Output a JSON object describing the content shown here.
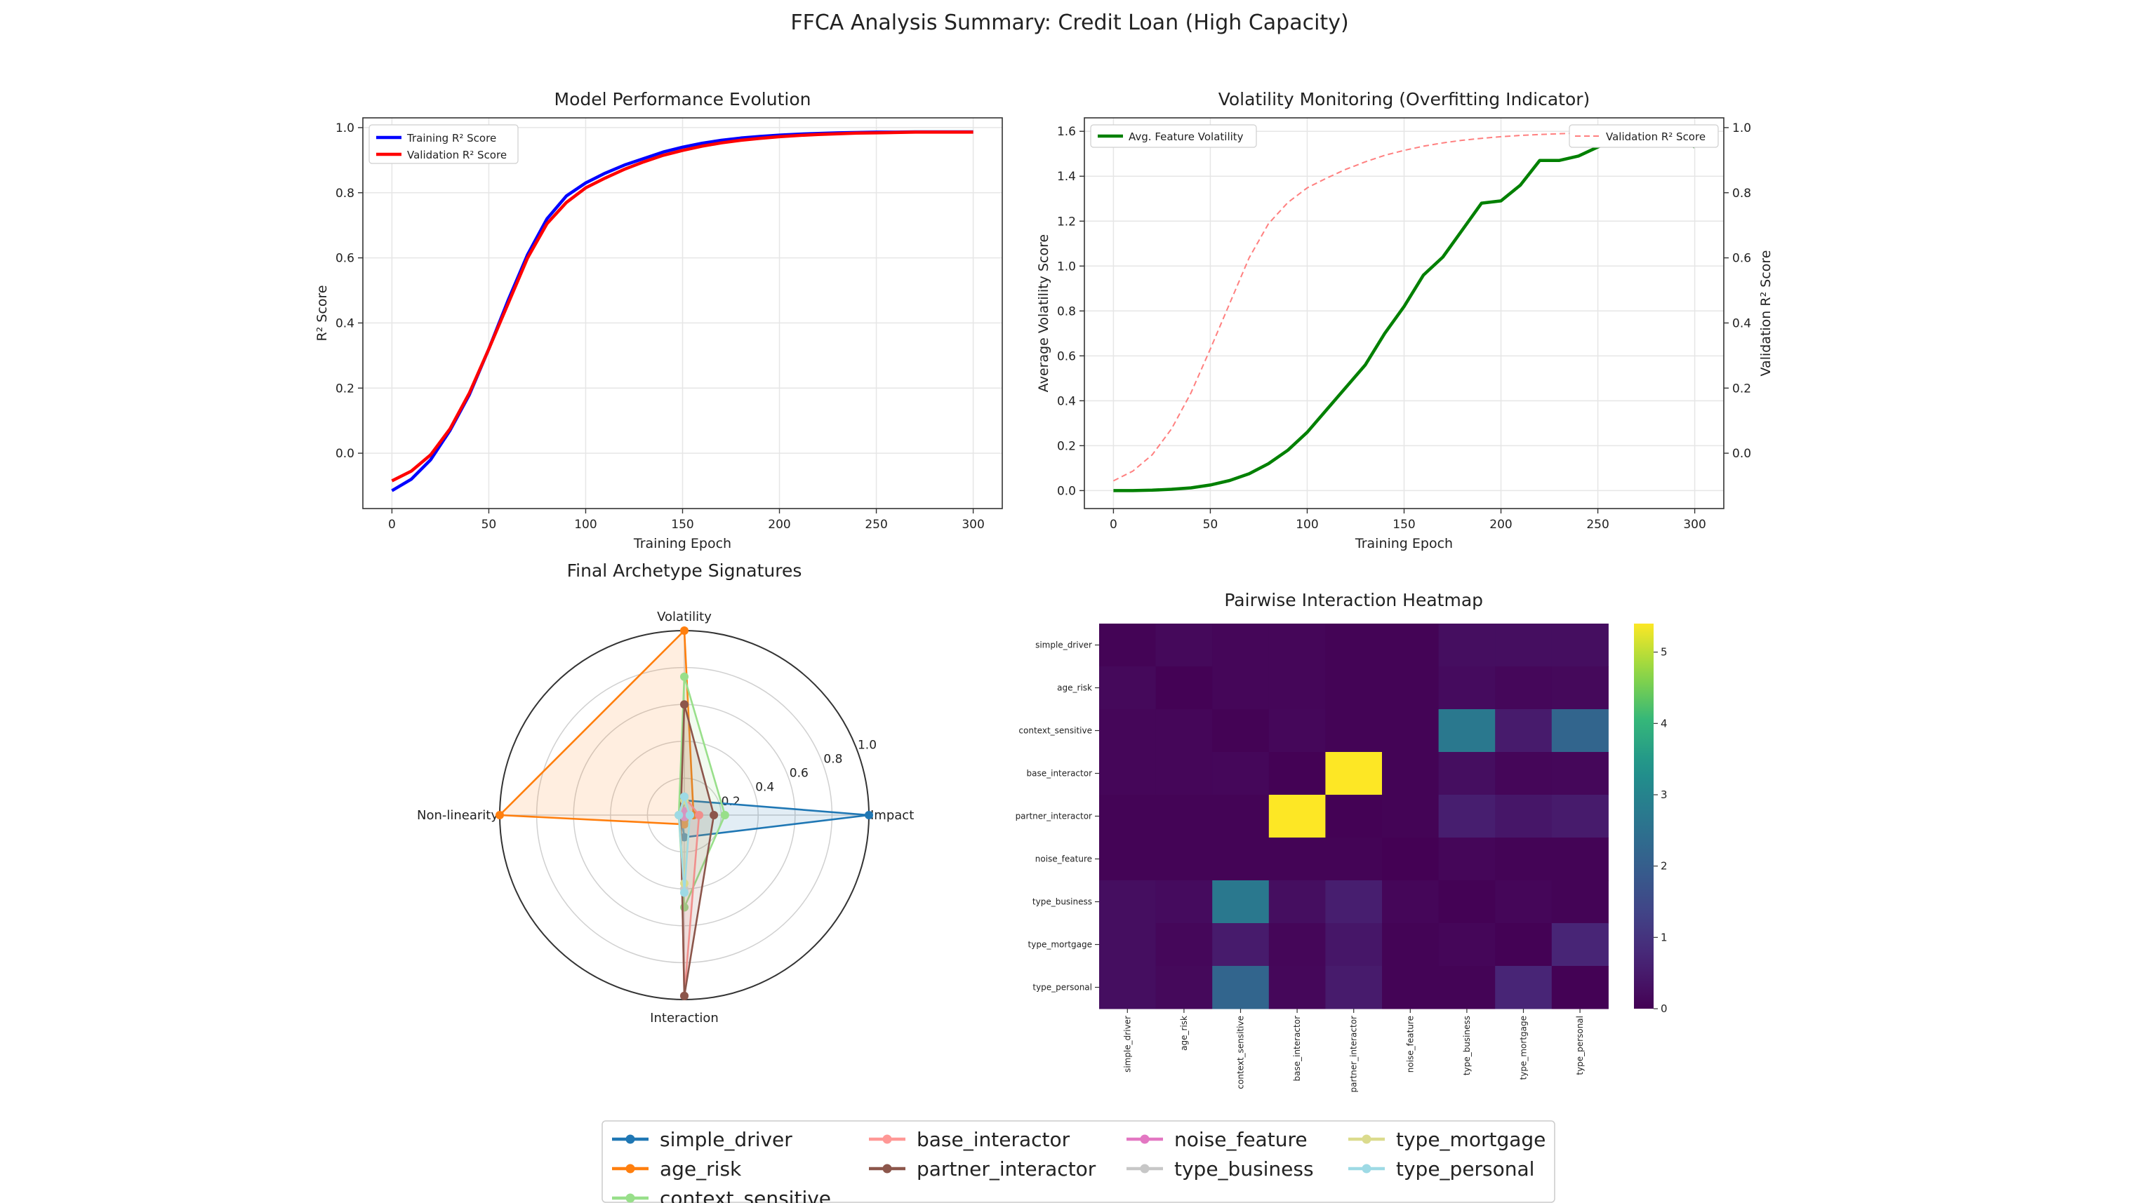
{
  "figure": {
    "title": "FFCA Analysis Summary: Credit Loan (High Capacity)"
  },
  "colors": {
    "training": "#0000ff",
    "validation": "#ff0000",
    "volatility": "#008000",
    "val_dashed": "#ff8080",
    "grid": "#e6e6e6",
    "axis": "#333333"
  },
  "chart_data": [
    {
      "id": "performance",
      "type": "line",
      "title": "Model Performance Evolution",
      "xlabel": "Training Epoch",
      "ylabel": "R² Score",
      "xlim": [
        -15,
        315
      ],
      "ylim": [
        -0.17,
        1.03
      ],
      "xticks": [
        0,
        50,
        100,
        150,
        200,
        250,
        300
      ],
      "yticks": [
        0.0,
        0.2,
        0.4,
        0.6,
        0.8,
        1.0
      ],
      "x": [
        0,
        10,
        20,
        30,
        40,
        50,
        60,
        70,
        80,
        90,
        100,
        110,
        120,
        130,
        140,
        150,
        160,
        170,
        180,
        190,
        200,
        210,
        220,
        230,
        240,
        250,
        260,
        270,
        280,
        290,
        300
      ],
      "series": [
        {
          "name": "Training R² Score",
          "color": "#0000ff",
          "values": [
            -0.115,
            -0.08,
            -0.02,
            0.07,
            0.18,
            0.32,
            0.47,
            0.61,
            0.72,
            0.79,
            0.83,
            0.86,
            0.885,
            0.905,
            0.925,
            0.94,
            0.952,
            0.961,
            0.968,
            0.973,
            0.977,
            0.98,
            0.982,
            0.984,
            0.985,
            0.986,
            0.986,
            0.987,
            0.987,
            0.987,
            0.987
          ]
        },
        {
          "name": "Validation R² Score",
          "color": "#ff0000",
          "values": [
            -0.085,
            -0.055,
            -0.005,
            0.075,
            0.185,
            0.32,
            0.46,
            0.6,
            0.705,
            0.77,
            0.815,
            0.845,
            0.872,
            0.895,
            0.915,
            0.93,
            0.943,
            0.953,
            0.961,
            0.967,
            0.972,
            0.976,
            0.979,
            0.981,
            0.983,
            0.984,
            0.985,
            0.986,
            0.986,
            0.986,
            0.986
          ]
        }
      ],
      "legend": "upper-left"
    },
    {
      "id": "volatility",
      "type": "line",
      "title": "Volatility Monitoring (Overfitting Indicator)",
      "xlabel": "Training Epoch",
      "ylabel": "Average Volatility Score",
      "ylabel_right": "Validation R² Score",
      "xlim": [
        -15,
        315
      ],
      "ylim": [
        -0.08,
        1.66
      ],
      "ylim_right": [
        -0.17,
        1.03
      ],
      "xticks": [
        0,
        50,
        100,
        150,
        200,
        250,
        300
      ],
      "yticks": [
        0.0,
        0.2,
        0.4,
        0.6,
        0.8,
        1.0,
        1.2,
        1.4,
        1.6
      ],
      "yticks_right": [
        0.0,
        0.2,
        0.4,
        0.6,
        0.8,
        1.0
      ],
      "x": [
        0,
        10,
        20,
        30,
        40,
        50,
        60,
        70,
        80,
        90,
        100,
        110,
        120,
        130,
        140,
        150,
        160,
        170,
        180,
        190,
        200,
        210,
        220,
        230,
        240,
        250,
        260,
        270,
        280,
        290,
        300
      ],
      "series": [
        {
          "name": "Avg. Feature Volatility",
          "color": "#008000",
          "axis": "left",
          "values": [
            0.0,
            0.0,
            0.002,
            0.006,
            0.012,
            0.025,
            0.045,
            0.075,
            0.12,
            0.18,
            0.26,
            0.36,
            0.46,
            0.56,
            0.7,
            0.82,
            0.96,
            1.04,
            1.16,
            1.28,
            1.29,
            1.36,
            1.47,
            1.47,
            1.49,
            1.53,
            1.57,
            1.6,
            1.6,
            1.59,
            1.53
          ]
        },
        {
          "name": "Validation R² Score",
          "color": "#ff8080",
          "axis": "right",
          "dashed": true,
          "values": [
            -0.085,
            -0.055,
            -0.005,
            0.075,
            0.185,
            0.32,
            0.46,
            0.6,
            0.705,
            0.77,
            0.815,
            0.845,
            0.872,
            0.895,
            0.915,
            0.93,
            0.943,
            0.953,
            0.961,
            0.967,
            0.972,
            0.976,
            0.979,
            0.981,
            0.983,
            0.984,
            0.985,
            0.986,
            0.986,
            0.986,
            0.986
          ]
        }
      ]
    },
    {
      "id": "radar",
      "type": "radar",
      "title": "Final Archetype Signatures",
      "axes": [
        "Impact",
        "Volatility",
        "Non-linearity",
        "Interaction"
      ],
      "rticks": [
        0.2,
        0.4,
        0.6,
        0.8,
        1.0
      ],
      "rmax": 1.0,
      "series": [
        {
          "name": "simple_driver",
          "color": "#1f77b4",
          "values": [
            1.0,
            0.08,
            0.02,
            0.12
          ]
        },
        {
          "name": "age_risk",
          "color": "#ff7f0e",
          "values": [
            0.05,
            1.0,
            1.0,
            0.05
          ]
        },
        {
          "name": "context_sensitive",
          "color": "#98df8a",
          "values": [
            0.22,
            0.75,
            0.03,
            0.5
          ]
        },
        {
          "name": "base_interactor",
          "color": "#ff9896",
          "values": [
            0.08,
            0.1,
            0.02,
            0.98
          ]
        },
        {
          "name": "partner_interactor",
          "color": "#8c564b",
          "values": [
            0.16,
            0.6,
            0.02,
            0.98
          ]
        },
        {
          "name": "noise_feature",
          "color": "#e377c2",
          "values": [
            0.01,
            0.02,
            0.01,
            0.01
          ]
        },
        {
          "name": "type_business",
          "color": "#c7c7c7",
          "values": [
            0.03,
            0.1,
            0.03,
            0.4
          ]
        },
        {
          "name": "type_mortgage",
          "color": "#dbdb8d",
          "values": [
            0.03,
            0.08,
            0.03,
            0.37
          ]
        },
        {
          "name": "type_personal",
          "color": "#9edae5",
          "values": [
            0.03,
            0.1,
            0.03,
            0.42
          ]
        }
      ]
    },
    {
      "id": "heatmap",
      "type": "heatmap",
      "title": "Pairwise Interaction Heatmap",
      "labels": [
        "simple_driver",
        "age_risk",
        "context_sensitive",
        "base_interactor",
        "partner_interactor",
        "noise_feature",
        "type_business",
        "type_mortgage",
        "type_personal"
      ],
      "matrix": [
        [
          0.05,
          0.15,
          0.1,
          0.1,
          0.05,
          0.05,
          0.25,
          0.25,
          0.25
        ],
        [
          0.15,
          0.02,
          0.1,
          0.1,
          0.05,
          0.05,
          0.2,
          0.12,
          0.15
        ],
        [
          0.1,
          0.1,
          0.03,
          0.12,
          0.05,
          0.05,
          2.7,
          0.5,
          2.2
        ],
        [
          0.1,
          0.1,
          0.12,
          0.02,
          5.4,
          0.05,
          0.25,
          0.1,
          0.12
        ],
        [
          0.05,
          0.05,
          0.05,
          5.4,
          0.02,
          0.05,
          0.55,
          0.4,
          0.5
        ],
        [
          0.05,
          0.05,
          0.05,
          0.05,
          0.05,
          0.0,
          0.1,
          0.05,
          0.05
        ],
        [
          0.25,
          0.2,
          2.7,
          0.25,
          0.55,
          0.1,
          0.02,
          0.1,
          0.05
        ],
        [
          0.25,
          0.12,
          0.5,
          0.1,
          0.4,
          0.05,
          0.1,
          0.02,
          0.7
        ],
        [
          0.25,
          0.15,
          2.2,
          0.12,
          0.5,
          0.05,
          0.05,
          0.7,
          0.02
        ]
      ],
      "vmin": 0,
      "vmax": 5.4,
      "colorbar_ticks": [
        0,
        1,
        2,
        3,
        4,
        5
      ]
    }
  ],
  "legend": {
    "items": [
      "simple_driver",
      "age_risk",
      "context_sensitive",
      "base_interactor",
      "partner_interactor",
      "noise_feature",
      "type_business",
      "type_mortgage",
      "type_personal"
    ]
  }
}
